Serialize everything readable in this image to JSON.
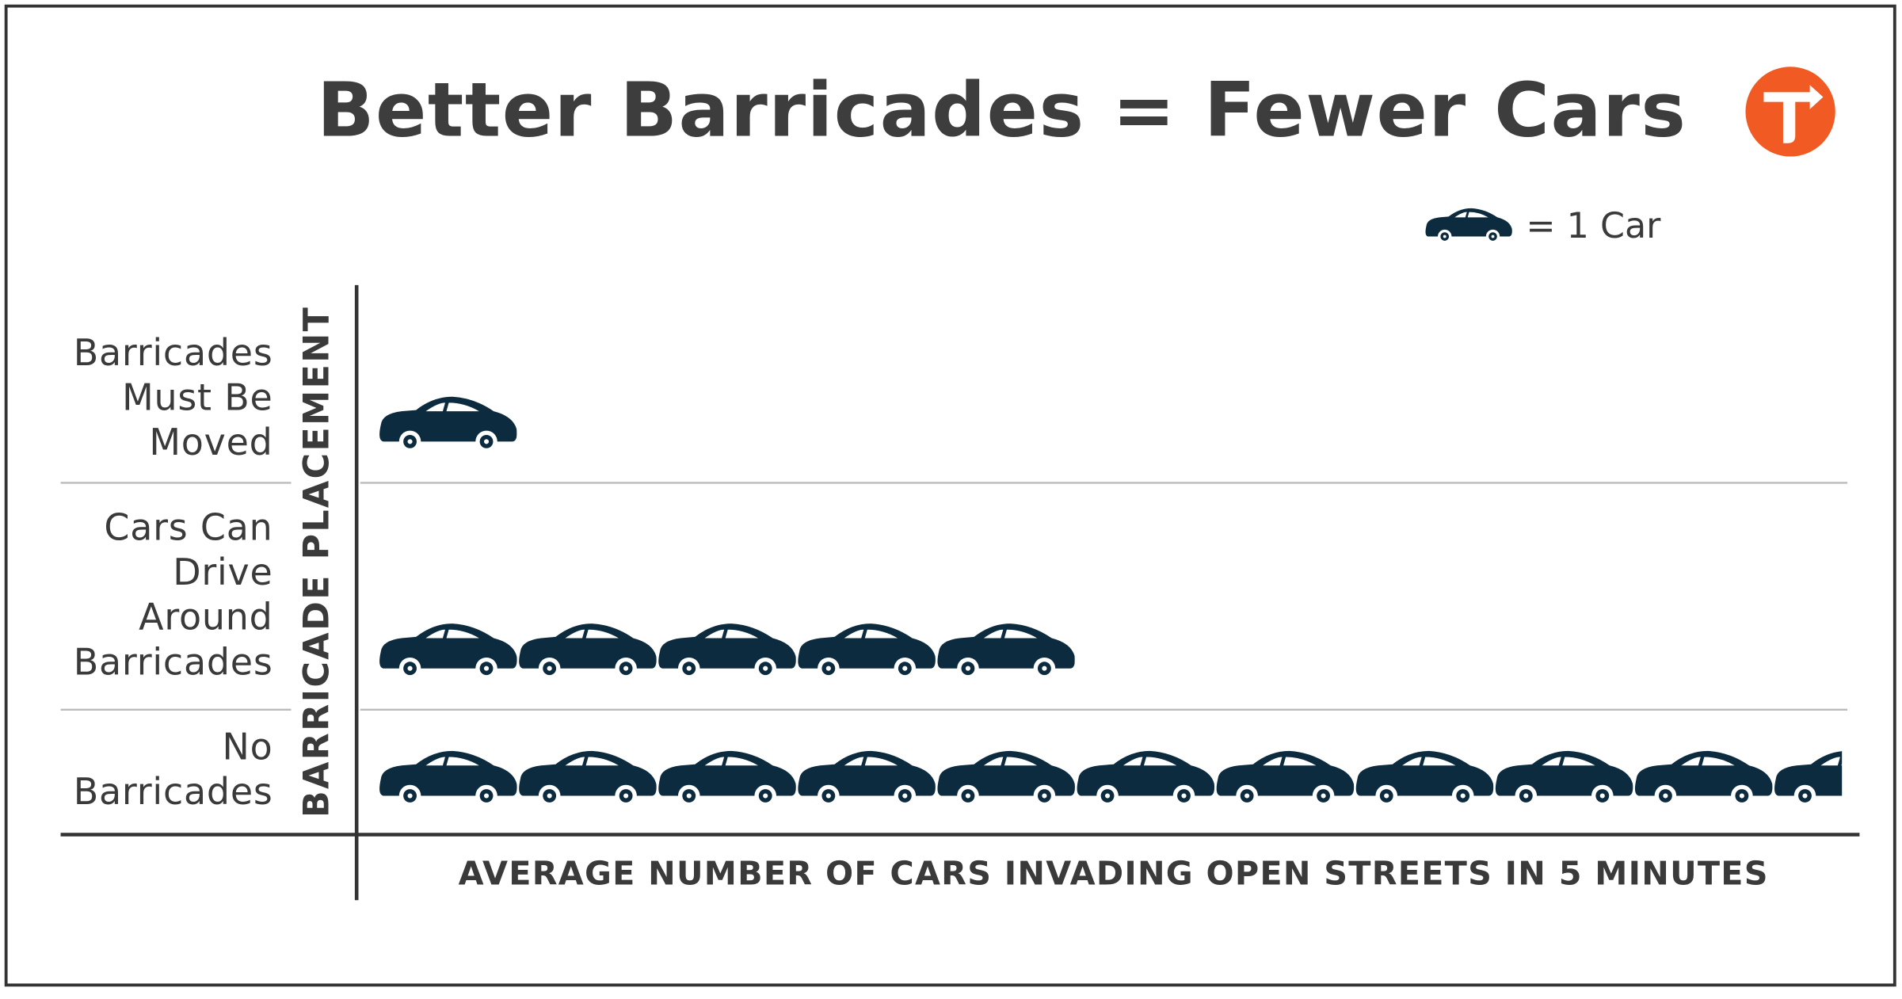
{
  "chart_data": {
    "type": "pictogram",
    "title": "Better Barricades = Fewer Cars",
    "legend_label": "= 1 Car",
    "y_label": "BARRICADE PLACEMENT",
    "x_label": "AVERAGE NUMBER OF CARS INVADING OPEN STREETS IN 5 MINUTES",
    "categories": [
      "Barricades Must Be Moved",
      "Cars Can Drive Around Barricades",
      "No Barricades"
    ],
    "values": [
      1,
      5,
      10.5
    ],
    "color": "#0d2b3e"
  }
}
